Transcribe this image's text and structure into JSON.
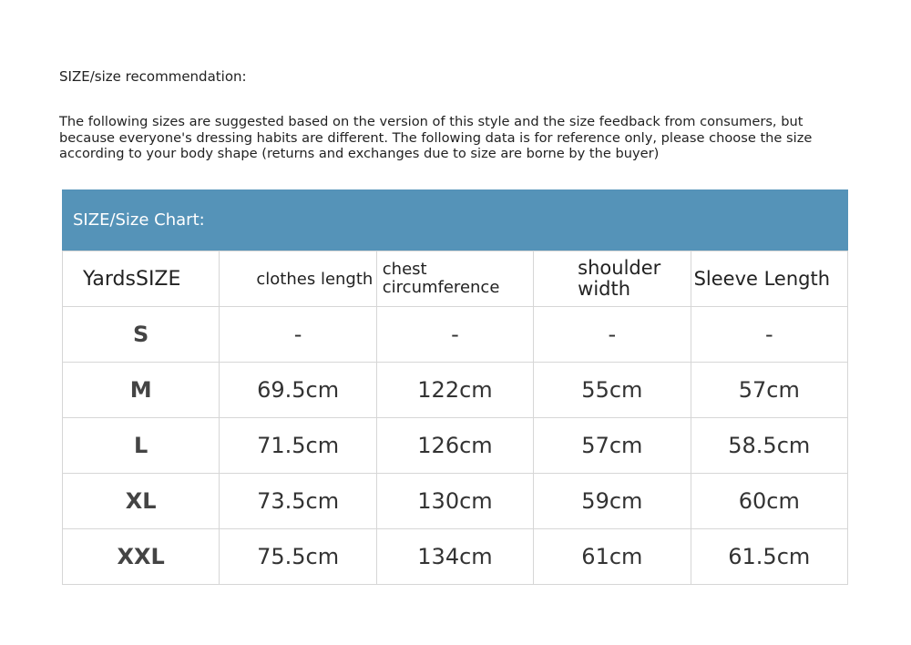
{
  "title": "SIZE/size recommendation:",
  "description": "The following sizes are suggested based on the version of this style and the size feedback from consumers, but because everyone's dressing habits are different. The following data is for reference only, please choose the size according to your body shape (returns and exchanges due to size are borne by the buyer)",
  "chart": {
    "banner": "SIZE/Size Chart:",
    "banner_color": "#5593b8",
    "headers": [
      "YardsSIZE",
      "clothes length",
      "chest circumference",
      "shoulder width",
      "Sleeve Length"
    ],
    "rows": [
      [
        "S",
        "-",
        "-",
        "-",
        "-"
      ],
      [
        "M",
        "69.5cm",
        "122cm",
        "55cm",
        "57cm"
      ],
      [
        "L",
        "71.5cm",
        "126cm",
        "57cm",
        "58.5cm"
      ],
      [
        "XL",
        "73.5cm",
        "130cm",
        "59cm",
        "60cm"
      ],
      [
        "XXL",
        "75.5cm",
        "134cm",
        "61cm",
        "61.5cm"
      ]
    ]
  }
}
